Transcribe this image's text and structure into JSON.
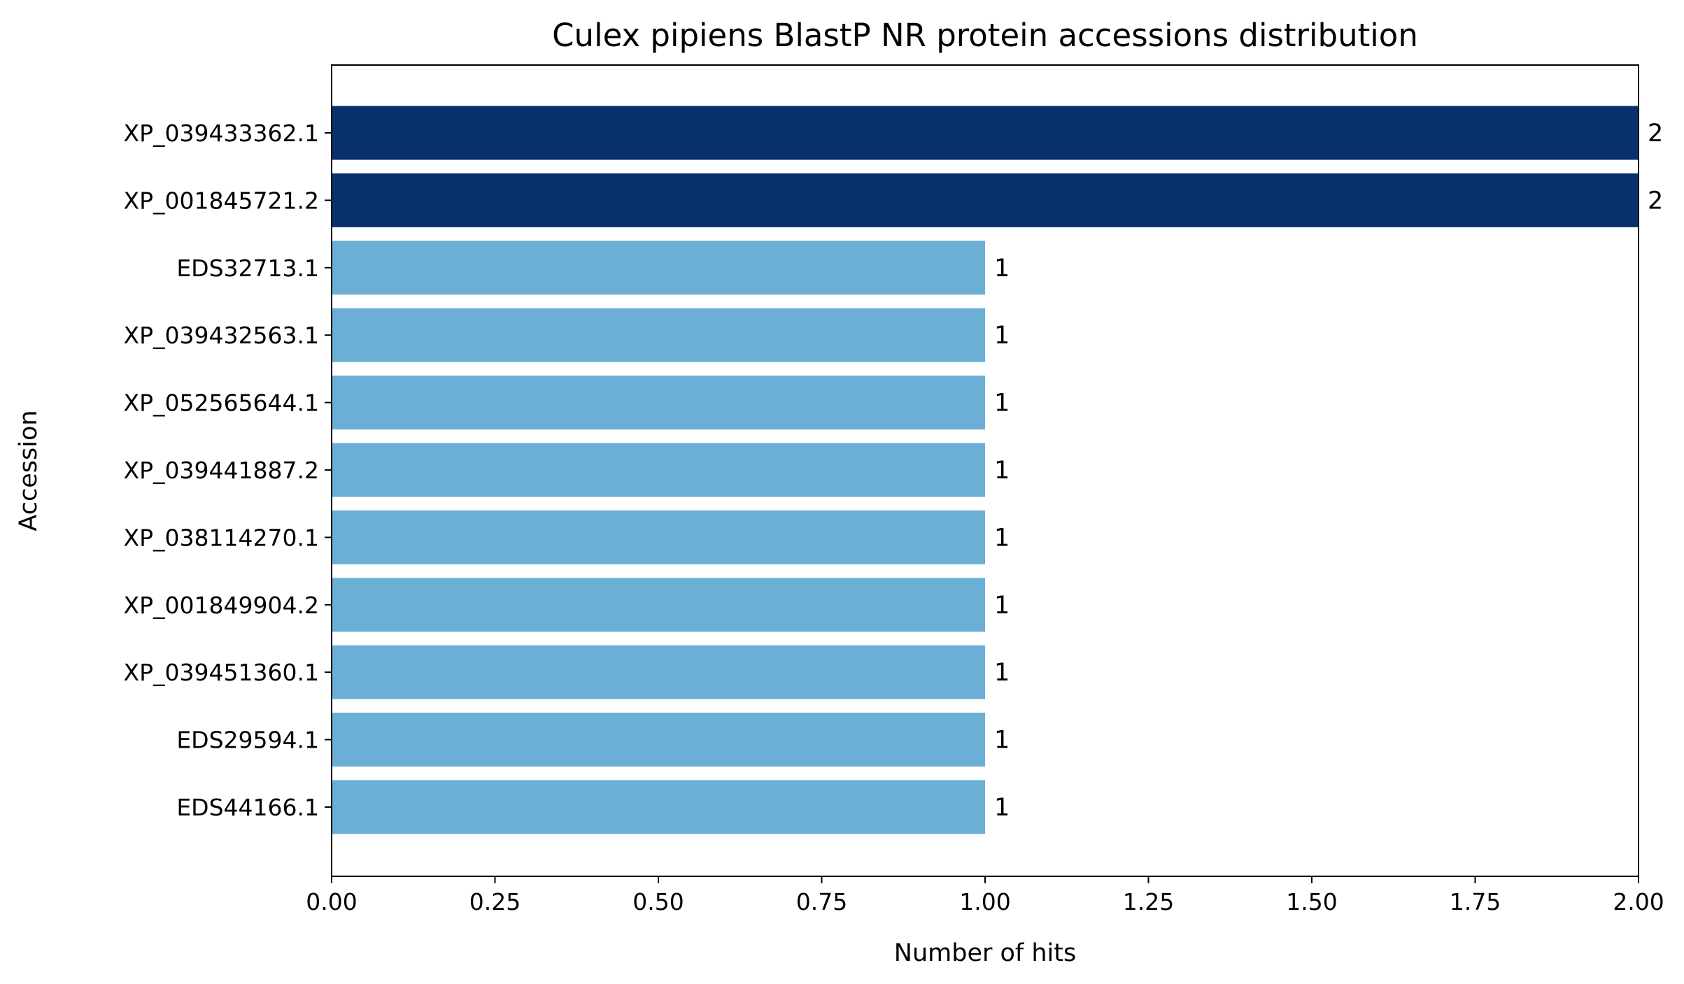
{
  "chart_data": {
    "type": "bar",
    "orientation": "horizontal",
    "title": "Culex pipiens BlastP NR protein accessions distribution",
    "xlabel": "Number of hits",
    "ylabel": "Accession",
    "categories": [
      "XP_039433362.1",
      "XP_001845721.2",
      "EDS32713.1",
      "XP_039432563.1",
      "XP_052565644.1",
      "XP_039441887.2",
      "XP_038114270.1",
      "XP_001849904.2",
      "XP_039451360.1",
      "EDS29594.1",
      "EDS44166.1"
    ],
    "values": [
      2,
      2,
      1,
      1,
      1,
      1,
      1,
      1,
      1,
      1,
      1
    ],
    "value_labels": [
      "2",
      "2",
      "1",
      "1",
      "1",
      "1",
      "1",
      "1",
      "1",
      "1",
      "1"
    ],
    "xlim": [
      0,
      2
    ],
    "xticks": [
      0,
      0.25,
      0.5,
      0.75,
      1,
      1.25,
      1.5,
      1.75,
      2
    ],
    "xtick_labels": [
      "0.00",
      "0.25",
      "0.50",
      "0.75",
      "1.00",
      "1.25",
      "1.50",
      "1.75",
      "2.00"
    ],
    "colors": {
      "high": "#08306b",
      "low": "#6baed6"
    },
    "grid": false,
    "legend": "none"
  }
}
